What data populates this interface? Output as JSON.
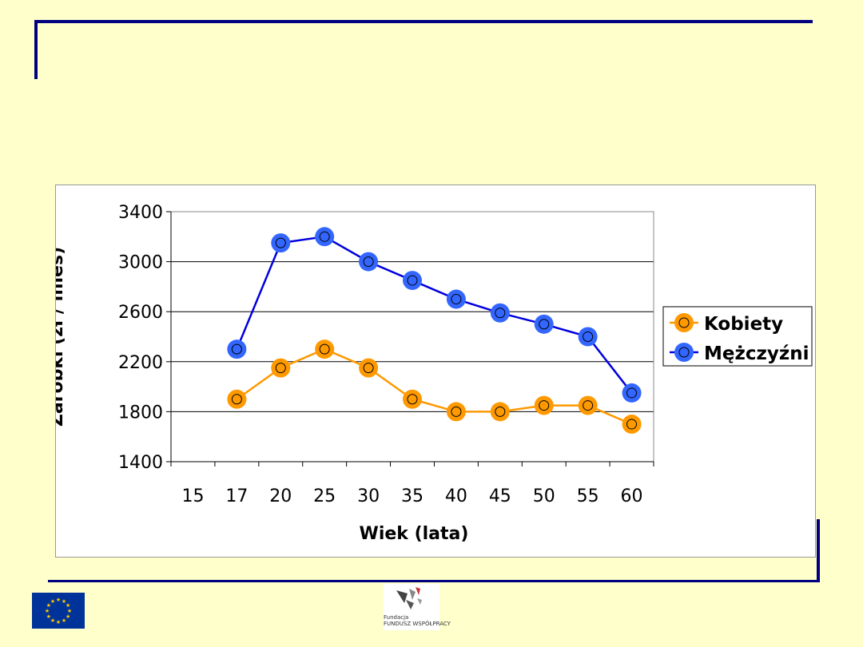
{
  "colors": {
    "frame": "#000080",
    "background": "#ffffcc",
    "kobiety": "#ff9900",
    "mezczyzni": "#0000dd",
    "mezczyzni_marker": "#3366ff"
  },
  "footer": {
    "fund_logo_line1": "Fundacja",
    "fund_logo_line2": "FUNDUSZ WSPÓŁPRACY",
    "eu_logo": "EU flag"
  },
  "chart_data": {
    "type": "line",
    "categories": [
      "15",
      "17",
      "20",
      "25",
      "30",
      "35",
      "40",
      "45",
      "50",
      "55",
      "60"
    ],
    "xlabel": "Wiek (lata)",
    "ylabel": "Zarobki (zł / mies)",
    "ylim": [
      1400,
      3400
    ],
    "yticks": [
      1400,
      1800,
      2200,
      2600,
      3000,
      3400
    ],
    "grid": true,
    "legend": "right",
    "series": [
      {
        "name": "Kobiety",
        "values": [
          null,
          1900,
          2150,
          2300,
          2150,
          1900,
          1800,
          1800,
          1850,
          1850,
          1700
        ]
      },
      {
        "name": "Mężczyźni",
        "values": [
          null,
          2300,
          3150,
          3200,
          3000,
          2850,
          2700,
          2590,
          2500,
          2400,
          1950
        ]
      }
    ]
  }
}
